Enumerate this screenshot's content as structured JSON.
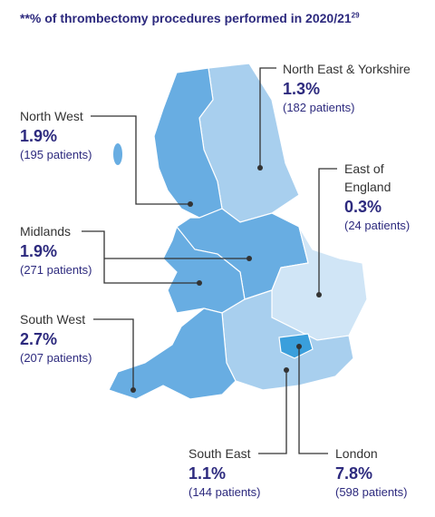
{
  "title": "**% of thrombectomy procedures performed in 2020/21",
  "title_ref": "29",
  "regions": [
    {
      "name": "North East & Yorkshire",
      "value": "1.3%",
      "patients": "(182 patients)",
      "color": "#a8cfee"
    },
    {
      "name": "North West",
      "value": "1.9%",
      "patients": "(195 patients)",
      "color": "#68ade2"
    },
    {
      "name": "East of England",
      "value": "0.3%",
      "patients": "(24 patients)",
      "color": "#d0e5f6"
    },
    {
      "name": "Midlands",
      "value": "1.9%",
      "patients": "(271 patients)",
      "color": "#68ade2"
    },
    {
      "name": "South West",
      "value": "2.7%",
      "patients": "(207 patients)",
      "color": "#68ade2"
    },
    {
      "name": "South East",
      "value": "1.1%",
      "patients": "(144 patients)",
      "color": "#a8cfee"
    },
    {
      "name": "London",
      "value": "7.8%",
      "patients": "(598 patients)",
      "color": "#3a9fdc"
    }
  ]
}
